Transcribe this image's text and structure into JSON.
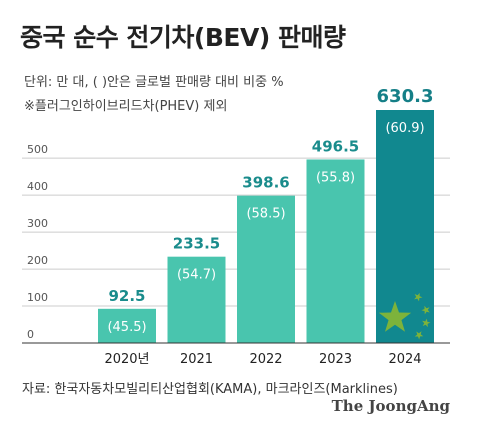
{
  "header": {
    "title": "중국 순수 전기차(BEV) 판매량",
    "unit_note": "단위: 만 대, ( )안은 글로벌 판매량 대비 비중 %",
    "exclude_note": "※플러그인하이브리드차(PHEV) 제외"
  },
  "footer": {
    "source": "자료: 한국자동차모빌리티산업협회(KAMA), 마크라인즈(Marklines)",
    "brand": "The JoongAng"
  },
  "colors": {
    "bar": "#49C5AE",
    "bar_highlight": "#11888F",
    "value_label": "#1A8C8C",
    "value_label_highlight": "#157F87",
    "share_label": "#ffffff",
    "grid": "#cccccc",
    "axis": "#555555",
    "star": "#7DB33B"
  },
  "chart_data": {
    "type": "bar",
    "categories": [
      "2020년",
      "2021",
      "2022",
      "2023",
      "2024"
    ],
    "values": [
      92.5,
      233.5,
      398.6,
      496.5,
      630.3
    ],
    "value_labels": [
      "92.5",
      "233.5",
      "398.6",
      "496.5",
      "630.3"
    ],
    "share_labels": [
      "(45.5)",
      "(54.7)",
      "(58.5)",
      "(55.8)",
      "(60.9)"
    ],
    "shares": [
      45.5,
      54.7,
      58.5,
      55.8,
      60.9
    ],
    "yticks": [
      0,
      100,
      200,
      300,
      400,
      500
    ],
    "ylim": [
      0,
      630.3
    ],
    "grid": true,
    "highlight_index": 4,
    "highlight_decoration": "china-flag-stars"
  }
}
